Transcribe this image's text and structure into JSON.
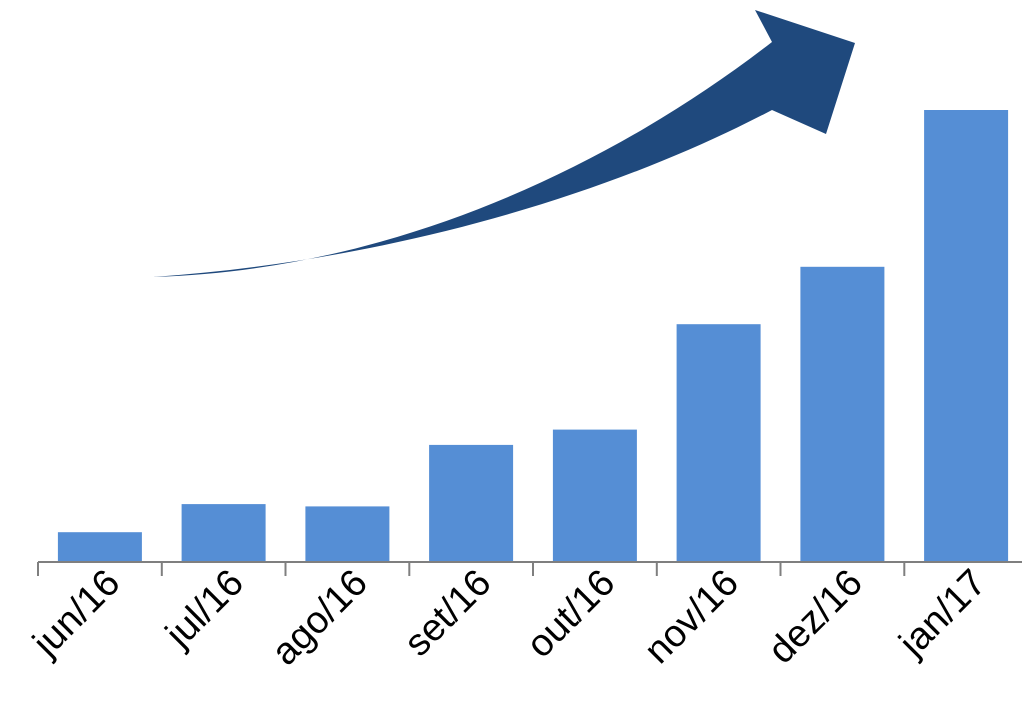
{
  "chart_data": {
    "type": "bar",
    "categories": [
      "jun/16",
      "jul/16",
      "ago/16",
      "set/16",
      "out/16",
      "nov/16",
      "dez/16",
      "jan/17"
    ],
    "values": [
      6.6,
      12.8,
      12.3,
      25.9,
      29.3,
      52.6,
      65.3,
      100
    ],
    "ylim": [
      0,
      100
    ],
    "grid": false,
    "legend": "none",
    "title": "",
    "xlabel": "",
    "ylabel": "",
    "colors": {
      "bar": "#558ed5",
      "axis": "#7f7f7f",
      "arrow": "#1f497d"
    },
    "annotation_icon": "upward-trend-arrow-icon"
  }
}
